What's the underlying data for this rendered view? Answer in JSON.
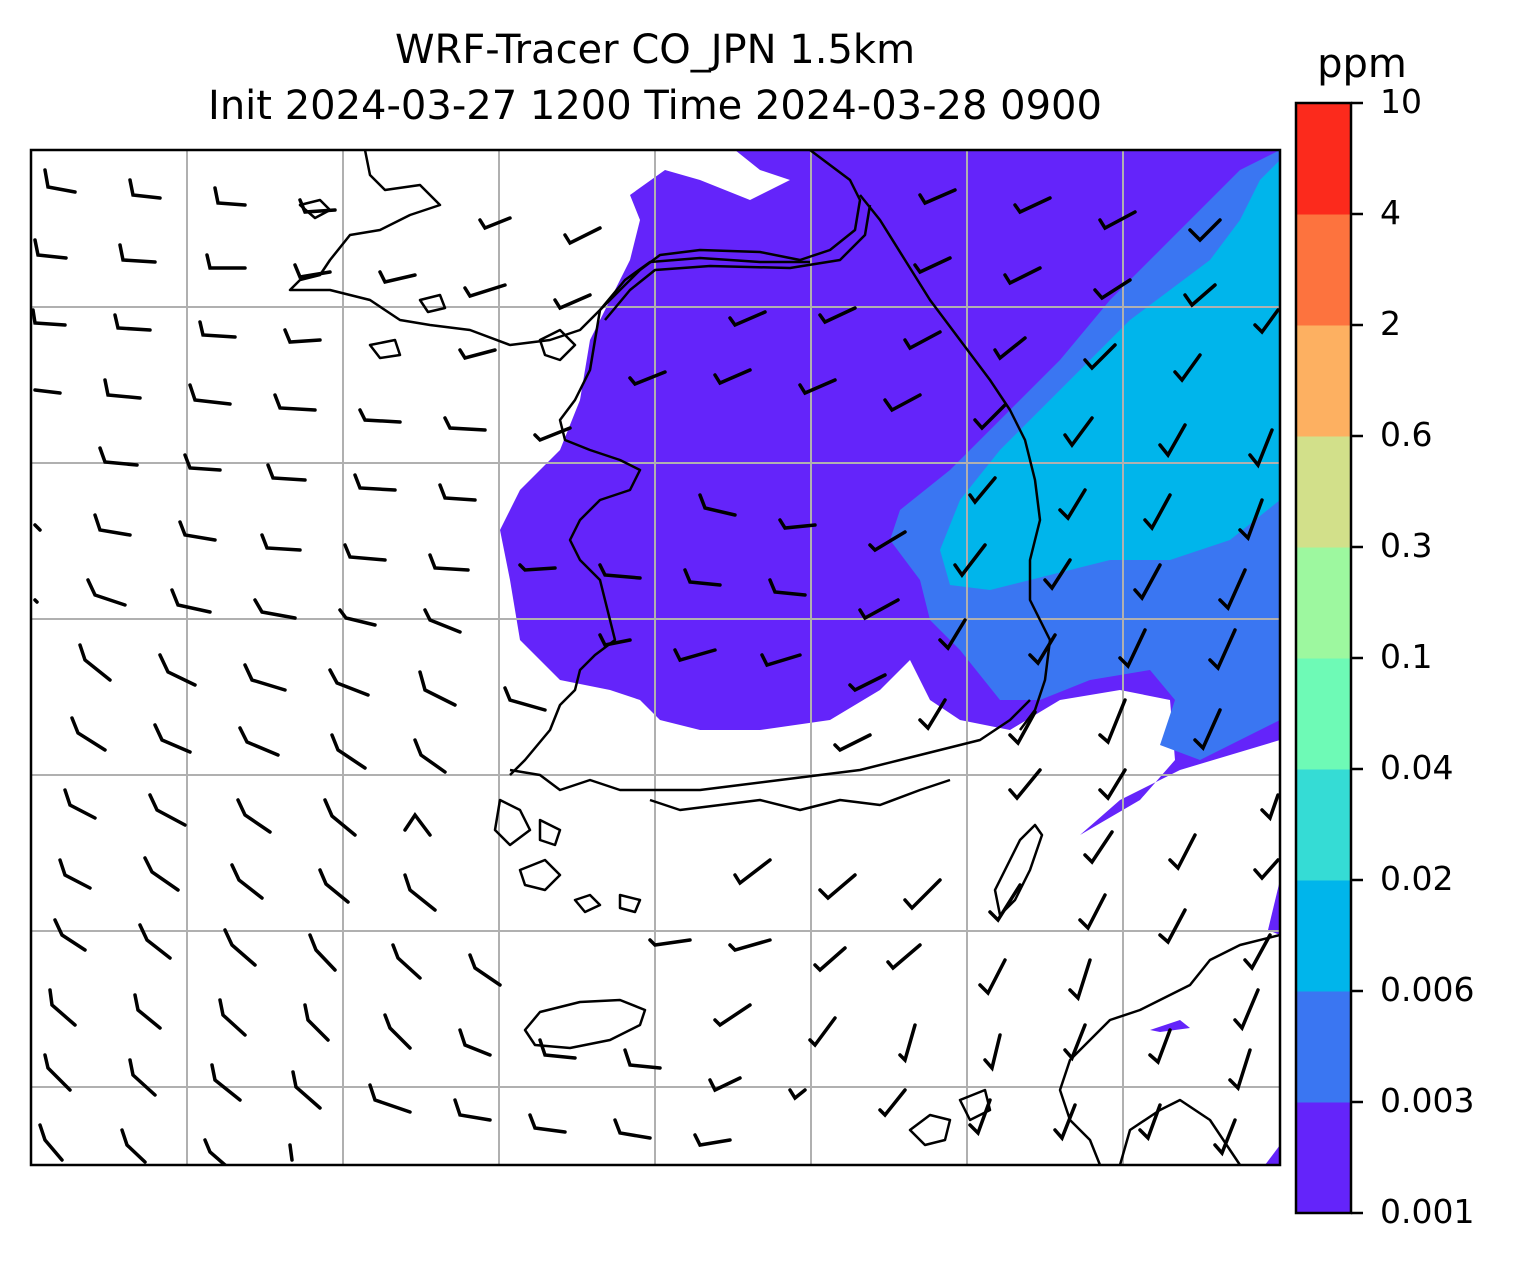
{
  "title": {
    "line1": "WRF-Tracer CO_JPN 1.5km",
    "line2": "Init 2024-03-27 1200 Time 2024-03-28 0900"
  },
  "colorbar": {
    "unit": "ppm",
    "tick_labels": [
      "0.001",
      "0.003",
      "0.006",
      "0.02",
      "0.04",
      "0.1",
      "0.3",
      "0.6",
      "2",
      "4",
      "10"
    ],
    "colors": [
      "#6424FA",
      "#3A76F2",
      "#00B5EB",
      "#35DCD5",
      "#6EFAB6",
      "#9DF89F",
      "#D2E08A",
      "#FDB061",
      "#FD733E",
      "#FC2A1C"
    ]
  },
  "map": {
    "field": "CO tracer concentration",
    "gridlines": true,
    "wind_barbs": true,
    "coastlines": true,
    "colors": {
      "grid": "#b0b0b0",
      "coast": "#000000",
      "barb": "#000000"
    }
  }
}
